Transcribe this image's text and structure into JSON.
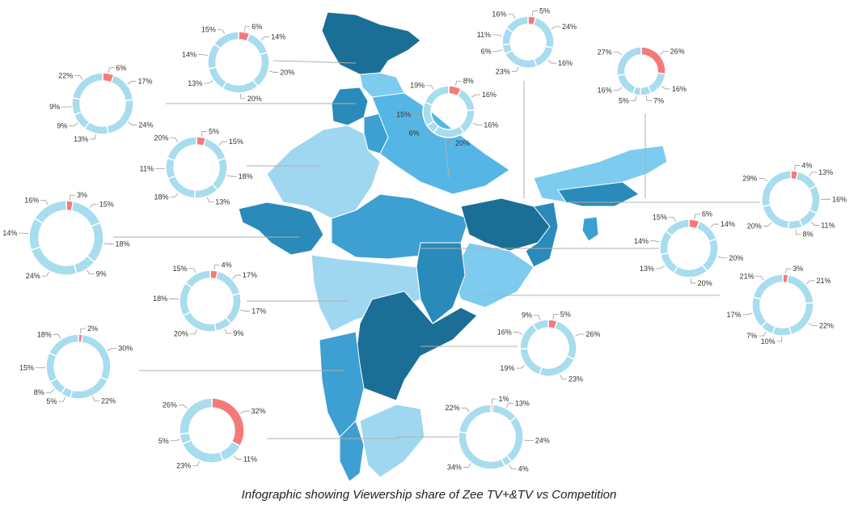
{
  "caption": "Infographic showing Viewership share of Zee TV+&TV vs Competition",
  "colors": {
    "highlight": "#f47a7a",
    "segment": "#a8dcef",
    "segment_edge": "#ffffff",
    "leader_line": "#b0b0b0",
    "map_palette": [
      "#1b6f96",
      "#2a8bba",
      "#3d9fd2",
      "#55b6e6",
      "#7dcbef",
      "#9fd7f1"
    ]
  },
  "chart_data": [
    {
      "type": "pie",
      "subtype": "donut",
      "values": [
        6,
        14,
        20,
        20,
        13,
        14,
        15
      ],
      "labels": [
        "6%",
        "14%",
        "20%",
        "20%",
        "13%",
        "14%",
        "15%"
      ],
      "highlight_index": 0
    },
    {
      "type": "pie",
      "subtype": "donut",
      "values": [
        6,
        17,
        24,
        13,
        9,
        9,
        22
      ],
      "labels": [
        "6%",
        "17%",
        "24%",
        "13%",
        "9%",
        "9%",
        "22%"
      ],
      "highlight_index": 0
    },
    {
      "type": "pie",
      "subtype": "donut",
      "values": [
        5,
        15,
        18,
        13,
        18,
        11,
        20
      ],
      "labels": [
        "5%",
        "15%",
        "18%",
        "13%",
        "18%",
        "11%",
        "20%"
      ],
      "highlight_index": 0
    },
    {
      "type": "pie",
      "subtype": "donut",
      "values": [
        3,
        15,
        18,
        9,
        24,
        14,
        16
      ],
      "labels": [
        "3%",
        "15%",
        "18%",
        "9%",
        "24%",
        "14%",
        "16%"
      ],
      "highlight_index": 0
    },
    {
      "type": "pie",
      "subtype": "donut",
      "values": [
        4,
        17,
        17,
        9,
        20,
        18,
        15
      ],
      "labels": [
        "4%",
        "17%",
        "17%",
        "9%",
        "20%",
        "18%",
        "15%"
      ],
      "highlight_index": 0
    },
    {
      "type": "pie",
      "subtype": "donut",
      "values": [
        2,
        30,
        22,
        5,
        8,
        15,
        18
      ],
      "labels": [
        "2%",
        "30%",
        "22%",
        "5%",
        "8%",
        "15%",
        "18%"
      ],
      "highlight_index": 0
    },
    {
      "type": "pie",
      "subtype": "donut",
      "values": [
        32,
        11,
        23,
        5,
        26
      ],
      "labels": [
        "32%",
        "11%",
        "23%",
        "5%",
        "26%"
      ],
      "highlight_index": 0
    },
    {
      "type": "pie",
      "subtype": "donut",
      "values": [
        8,
        16,
        16,
        20,
        6,
        15,
        19
      ],
      "labels": [
        "8%",
        "16%",
        "16%",
        "20%",
        "6%",
        "15%",
        "19%"
      ],
      "highlight_index": 0
    },
    {
      "type": "pie",
      "subtype": "donut",
      "values": [
        5,
        24,
        16,
        23,
        6,
        11,
        16
      ],
      "labels": [
        "5%",
        "24%",
        "16%",
        "23%",
        "6%",
        "11%",
        "16%"
      ],
      "highlight_index": 0
    },
    {
      "type": "pie",
      "subtype": "donut",
      "values": [
        26,
        16,
        7,
        5,
        16,
        27
      ],
      "labels": [
        "26%",
        "16%",
        "7%",
        "5%",
        "16%",
        "27%"
      ],
      "highlight_index": 0
    },
    {
      "type": "pie",
      "subtype": "donut",
      "values": [
        4,
        13,
        16,
        11,
        8,
        20,
        29
      ],
      "labels": [
        "4%",
        "13%",
        "16%",
        "11%",
        "8%",
        "20%",
        "29%"
      ],
      "highlight_index": 0
    },
    {
      "type": "pie",
      "subtype": "donut",
      "values": [
        6,
        14,
        20,
        20,
        13,
        14,
        15
      ],
      "labels": [
        "6%",
        "14%",
        "20%",
        "20%",
        "13%",
        "14%",
        "15%"
      ],
      "highlight_index": 0
    },
    {
      "type": "pie",
      "subtype": "donut",
      "values": [
        3,
        21,
        22,
        10,
        7,
        17,
        21
      ],
      "labels": [
        "3%",
        "21%",
        "22%",
        "10%",
        "7%",
        "17%",
        "21%"
      ],
      "highlight_index": 0
    },
    {
      "type": "pie",
      "subtype": "donut",
      "values": [
        5,
        26,
        23,
        19,
        16,
        9
      ],
      "labels": [
        "5%",
        "26%",
        "23%",
        "19%",
        "16%",
        "9%"
      ],
      "highlight_index": 0
    },
    {
      "type": "pie",
      "subtype": "donut",
      "values": [
        1,
        13,
        24,
        4,
        34,
        22
      ],
      "labels": [
        "1%",
        "13%",
        "24%",
        "4%",
        "34%",
        "22%"
      ],
      "highlight_index": 0
    }
  ]
}
